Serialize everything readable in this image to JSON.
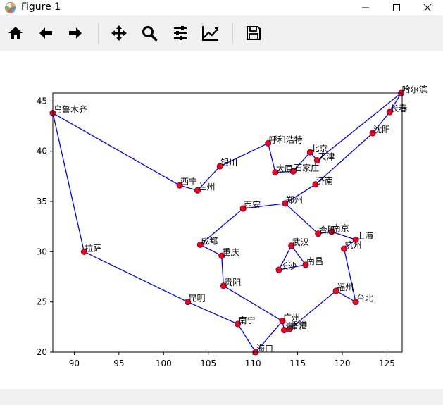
{
  "window": {
    "title": "Figure 1",
    "app_icon": "matplotlib-icon",
    "controls": [
      "minimize-icon",
      "maximize-icon",
      "close-icon"
    ]
  },
  "toolbar": {
    "buttons": [
      {
        "name": "home-icon",
        "tooltip": "Home"
      },
      {
        "name": "back-arrow-icon",
        "tooltip": "Back"
      },
      {
        "name": "forward-arrow-icon",
        "tooltip": "Forward"
      },
      {
        "name": "pan-move-icon",
        "tooltip": "Pan"
      },
      {
        "name": "zoom-magnifier-icon",
        "tooltip": "Zoom"
      },
      {
        "name": "subplots-config-icon",
        "tooltip": "Subplots"
      },
      {
        "name": "edit-axis-icon",
        "tooltip": "Customize"
      },
      {
        "name": "save-disk-icon",
        "tooltip": "Save"
      }
    ]
  },
  "chart_data": {
    "type": "scatter",
    "title": "",
    "xlabel": "",
    "ylabel": "",
    "xlim": [
      87.6,
      126.7
    ],
    "ylim": [
      20.0,
      45.8
    ],
    "xticks": [
      90,
      95,
      100,
      105,
      110,
      115,
      120,
      125
    ],
    "yticks": [
      20,
      25,
      30,
      35,
      40,
      45
    ],
    "grid": false,
    "point_color": "#ff0000",
    "point_edge_color": "#0000aa",
    "line_color": "#0000ff",
    "cities": [
      {
        "name": "乌鲁木齐",
        "x": 87.6,
        "y": 43.8
      },
      {
        "name": "拉萨",
        "x": 91.1,
        "y": 30.0
      },
      {
        "name": "昆明",
        "x": 102.7,
        "y": 25.0
      },
      {
        "name": "南宁",
        "x": 108.3,
        "y": 22.8
      },
      {
        "name": "海口",
        "x": 110.3,
        "y": 20.0
      },
      {
        "name": "广州",
        "x": 113.3,
        "y": 23.1
      },
      {
        "name": "澳门",
        "x": 113.5,
        "y": 22.2
      },
      {
        "name": "香港",
        "x": 114.1,
        "y": 22.3
      },
      {
        "name": "福州",
        "x": 119.3,
        "y": 26.1
      },
      {
        "name": "台北",
        "x": 121.5,
        "y": 25.0
      },
      {
        "name": "杭州",
        "x": 120.2,
        "y": 30.3
      },
      {
        "name": "上海",
        "x": 121.5,
        "y": 31.2
      },
      {
        "name": "南京",
        "x": 118.8,
        "y": 32.0
      },
      {
        "name": "合肥",
        "x": 117.3,
        "y": 31.8
      },
      {
        "name": "郑州",
        "x": 113.6,
        "y": 34.8
      },
      {
        "name": "济南",
        "x": 117.0,
        "y": 36.7
      },
      {
        "name": "沈阳",
        "x": 123.4,
        "y": 41.8
      },
      {
        "name": "长春",
        "x": 125.3,
        "y": 43.9
      },
      {
        "name": "哈尔滨",
        "x": 126.6,
        "y": 45.8
      },
      {
        "name": "天津",
        "x": 117.2,
        "y": 39.1
      },
      {
        "name": "北京",
        "x": 116.4,
        "y": 39.9
      },
      {
        "name": "石家庄",
        "x": 114.5,
        "y": 38.0
      },
      {
        "name": "太原",
        "x": 112.5,
        "y": 37.9
      },
      {
        "name": "呼和浩特",
        "x": 111.7,
        "y": 40.8
      },
      {
        "name": "银川",
        "x": 106.3,
        "y": 38.5
      },
      {
        "name": "兰州",
        "x": 103.8,
        "y": 36.1
      },
      {
        "name": "西宁",
        "x": 101.8,
        "y": 36.6
      },
      {
        "name": "西安",
        "x": 108.9,
        "y": 34.3
      },
      {
        "name": "成都",
        "x": 104.1,
        "y": 30.7
      },
      {
        "name": "重庆",
        "x": 106.5,
        "y": 29.6
      },
      {
        "name": "贵阳",
        "x": 106.7,
        "y": 26.6
      },
      {
        "name": "长沙",
        "x": 112.9,
        "y": 28.2
      },
      {
        "name": "武汉",
        "x": 114.3,
        "y": 30.6
      },
      {
        "name": "南昌",
        "x": 115.9,
        "y": 28.7
      }
    ],
    "route_order": [
      "乌鲁木齐",
      "拉萨",
      "昆明",
      "南宁",
      "海口",
      "广州",
      "澳门",
      "香港",
      "福州",
      "台北",
      "杭州",
      "上海",
      "南京",
      "合肥",
      "郑州",
      "济南",
      "沈阳",
      "长春",
      "哈尔滨",
      "天津",
      "北京",
      "石家庄",
      "太原",
      "呼和浩特",
      "银川",
      "兰州",
      "西宁",
      "乌鲁木齐"
    ],
    "route_order_2": [
      "西安",
      "成都",
      "重庆",
      "贵阳",
      "广州"
    ],
    "route_order_3": [
      "西安",
      "郑州"
    ],
    "route_order_4": [
      "长沙",
      "武汉",
      "南昌",
      "长沙"
    ]
  }
}
